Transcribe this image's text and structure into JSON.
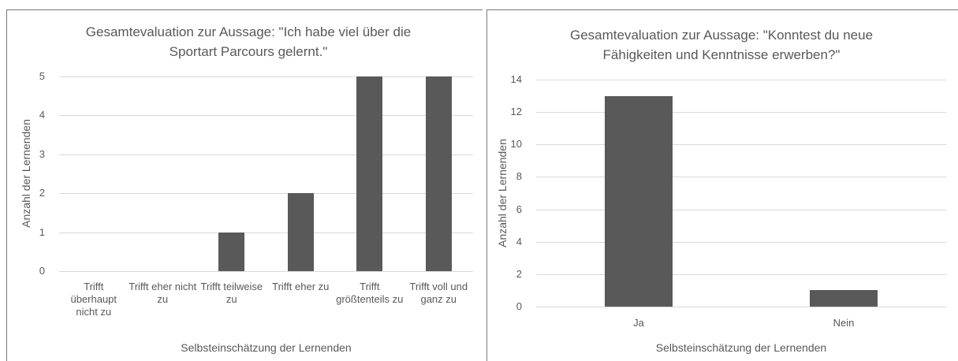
{
  "chart_data": [
    {
      "type": "bar",
      "title": "Gesamtevaluation zur Aussage: \"Ich habe viel über die Sportart Parcours gelernt.\"",
      "x_label": "Selbsteinschätzung der Lernenden",
      "y_label": "Anzahl der Lernenden",
      "categories": [
        "Trifft überhaupt nicht zu",
        "Trifft eher nicht zu",
        "Trifft teilweise zu",
        "Trifft eher zu",
        "Trifft größtenteils zu",
        "Trifft voll und ganz zu"
      ],
      "values": [
        0,
        0,
        1,
        2,
        5,
        5
      ],
      "color": "#595959",
      "ylim": [
        0,
        5
      ],
      "yticks": [
        0,
        1,
        2,
        3,
        4,
        5
      ],
      "grid": true
    },
    {
      "type": "bar",
      "title": "Gesamtevaluation zur Aussage: \"Konntest du neue Fähigkeiten und Kenntnisse erwerben?\"",
      "x_label": "Selbsteinschätzung der Lernenden",
      "y_label": "Anzahl der Lernenden",
      "categories": [
        "Ja",
        "Nein"
      ],
      "values": [
        13,
        1
      ],
      "color": "#595959",
      "ylim": [
        0,
        14
      ],
      "yticks": [
        0,
        2,
        4,
        6,
        8,
        10,
        12,
        14
      ],
      "grid": true
    }
  ]
}
